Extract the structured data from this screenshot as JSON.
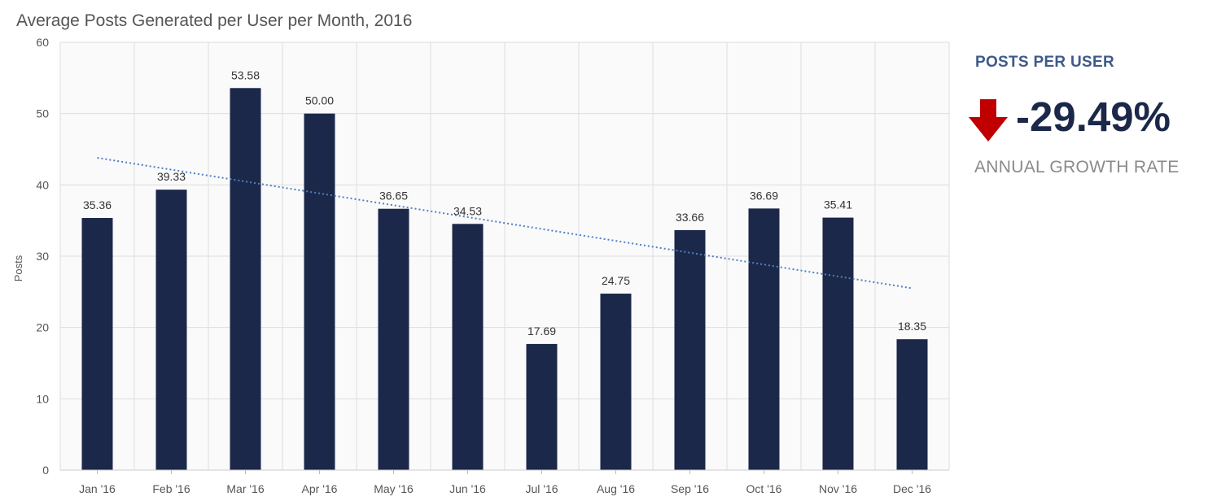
{
  "chart_data": {
    "type": "bar",
    "title": "Average Posts Generated per User per Month, 2016",
    "xlabel": "",
    "ylabel": "Posts",
    "ylim": [
      0,
      60
    ],
    "yticks": [
      0,
      10,
      20,
      30,
      40,
      50,
      60
    ],
    "grid": true,
    "categories": [
      "Jan '16",
      "Feb '16",
      "Mar '16",
      "Apr '16",
      "May '16",
      "Jun '16",
      "Jul '16",
      "Aug '16",
      "Sep '16",
      "Oct '16",
      "Nov '16",
      "Dec '16"
    ],
    "values": [
      35.36,
      39.33,
      53.58,
      50.0,
      36.65,
      34.53,
      17.69,
      24.75,
      33.66,
      36.69,
      35.41,
      18.35
    ],
    "value_labels": [
      "35.36",
      "39.33",
      "53.58",
      "50.00",
      "36.65",
      "34.53",
      "17.69",
      "24.75",
      "33.66",
      "36.69",
      "35.41",
      "18.35"
    ],
    "trendline": {
      "type": "linear",
      "start": 43.8,
      "end": 25.5
    },
    "colors": {
      "bar": "#1b2849",
      "trend": "#4f7fc4",
      "grid": "#dedede",
      "plot_bg": "#fafafa"
    }
  },
  "kpi": {
    "label": "POSTS PER USER",
    "value": "-29.49%",
    "subtitle": "ANNUAL GROWTH RATE",
    "arrow_icon": "arrow-down-icon",
    "arrow_color": "#c00000"
  }
}
